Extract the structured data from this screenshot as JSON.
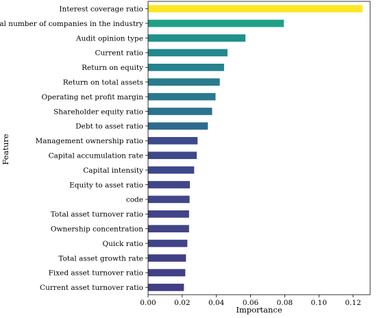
{
  "chart_data": {
    "type": "bar",
    "orientation": "horizontal",
    "xlabel": "Importance",
    "ylabel": "Feature",
    "xlim": [
      0,
      0.13
    ],
    "xticks": [
      "0.00",
      "0.02",
      "0.04",
      "0.06",
      "0.08",
      "0.10",
      "0.12"
    ],
    "grid": false,
    "colormap": "viridis",
    "categories": [
      "Interest coverage ratio",
      "Total number of companies in the industry",
      "Audit opinion type",
      "Current ratio",
      "Return on equity",
      "Return on total assets",
      "Operating net profit margin",
      "Shareholder equity ratio",
      "Debt to asset ratio",
      "Management ownership ratio",
      "Capital accumulation rate",
      "Capital intensity",
      "Equity to asset ratio",
      "code",
      "Total asset turnover ratio",
      "Ownership concentration",
      "Quick ratio",
      "Total asset growth rate",
      "Fixed asset turnover ratio",
      "Current asset turnover ratio"
    ],
    "values": [
      0.1255,
      0.0795,
      0.057,
      0.0465,
      0.0445,
      0.042,
      0.0395,
      0.0375,
      0.035,
      0.029,
      0.0285,
      0.027,
      0.0245,
      0.0243,
      0.024,
      0.024,
      0.023,
      0.0222,
      0.0218,
      0.021
    ],
    "colors": [
      "#fde725",
      "#1fa187",
      "#21918c",
      "#23898e",
      "#26828e",
      "#287c8e",
      "#2a788e",
      "#2c728e",
      "#2f6b8e",
      "#3e4a89",
      "#3e4989",
      "#3f4889",
      "#404688",
      "#404688",
      "#414487",
      "#414487",
      "#414487",
      "#424086",
      "#424086",
      "#423f85"
    ]
  }
}
